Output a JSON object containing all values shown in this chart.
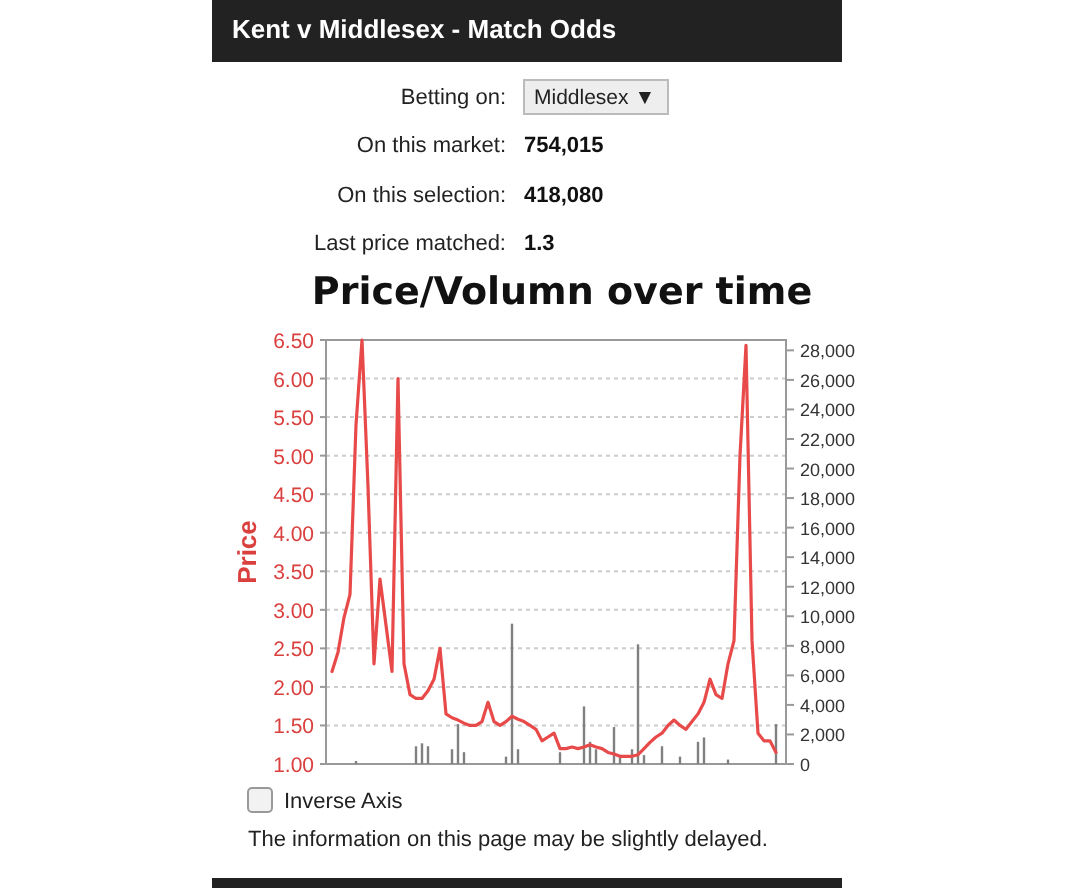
{
  "chart_data": {
    "type": "line",
    "title": "Price/Volumn over time",
    "ylabel": "Price",
    "annotations": [
      "Kent v Middlesex - Match Odds",
      "Betting on:",
      "Middlesex ▼",
      "On this market:",
      "754,015",
      "On this selection:",
      "418,080",
      "Last price matched:",
      "1.3",
      "Inverse Axis",
      "The information on this page may be slightly delayed."
    ],
    "categories": [
      null,
      null,
      null,
      null,
      null,
      null,
      null,
      null,
      null,
      null,
      null,
      null,
      null,
      null,
      null,
      null,
      null,
      null,
      null,
      null,
      null,
      null,
      null,
      null,
      null,
      null,
      null,
      null,
      null,
      null,
      null,
      null,
      null,
      null,
      null,
      null,
      null,
      null,
      null,
      null,
      null,
      null,
      null,
      null,
      null,
      null,
      null,
      null,
      null,
      null,
      null,
      null,
      null,
      null,
      null,
      null,
      null,
      null,
      null,
      null,
      null,
      null,
      null,
      null,
      null,
      null,
      null,
      null,
      null,
      null,
      null,
      null,
      null,
      null,
      null
    ],
    "series": [
      {
        "type": "bar",
        "axis": "y2",
        "color": "#808080",
        "values": [
          0,
          0,
          0,
          0,
          200,
          0,
          0,
          0,
          0,
          0,
          0,
          0,
          0,
          0,
          1200,
          1400,
          1200,
          0,
          0,
          0,
          1000,
          2700,
          800,
          0,
          0,
          0,
          0,
          0,
          0,
          500,
          9500,
          1000,
          0,
          0,
          0,
          0,
          0,
          0,
          800,
          0,
          0,
          0,
          3900,
          1500,
          1000,
          0,
          0,
          2500,
          600,
          0,
          1000,
          8100,
          600,
          0,
          0,
          1200,
          0,
          0,
          500,
          0,
          0,
          1500,
          1800,
          0,
          0,
          0,
          300,
          0,
          0,
          0,
          0,
          0,
          0,
          0,
          2700
        ]
      },
      {
        "color": "#e84a4a",
        "values": [
          2.2,
          2.45,
          2.9,
          3.2,
          5.4,
          6.5,
          4.6,
          2.3,
          3.4,
          2.8,
          2.2,
          6.0,
          2.3,
          1.9,
          1.85,
          1.85,
          1.95,
          2.1,
          2.5,
          1.65,
          1.6,
          1.57,
          1.53,
          1.5,
          1.5,
          1.55,
          1.8,
          1.55,
          1.5,
          1.55,
          1.62,
          1.58,
          1.55,
          1.5,
          1.45,
          1.3,
          1.35,
          1.4,
          1.2,
          1.2,
          1.22,
          1.2,
          1.22,
          1.25,
          1.22,
          1.2,
          1.15,
          1.13,
          1.1,
          1.1,
          1.1,
          1.12,
          1.2,
          1.28,
          1.35,
          1.4,
          1.5,
          1.57,
          1.5,
          1.45,
          1.55,
          1.65,
          1.8,
          2.1,
          1.9,
          1.85,
          2.3,
          2.6,
          5.0,
          6.43,
          2.6,
          1.4,
          1.3,
          1.3,
          1.15
        ]
      }
    ],
    "ylim": [
      1,
      6.5
    ],
    "yticks": [
      {
        "value": 1,
        "label": "1.00"
      },
      {
        "value": 1.5,
        "label": "1.50"
      },
      {
        "value": 2,
        "label": "2.00"
      },
      {
        "value": 2.5,
        "label": "2.50"
      },
      {
        "value": 3,
        "label": "3.00"
      },
      {
        "value": 3.5,
        "label": "3.50"
      },
      {
        "value": 4,
        "label": "4.00"
      },
      {
        "value": 4.5,
        "label": "4.50"
      },
      {
        "value": 5,
        "label": "5.00"
      },
      {
        "value": 5.5,
        "label": "5.50"
      },
      {
        "value": 6,
        "label": "6.00"
      },
      {
        "value": 6.5,
        "label": "6.50"
      }
    ],
    "y2lim": [
      0,
      28700
    ],
    "y2ticks": [
      0,
      {
        "value": 2000,
        "label": "2,000"
      },
      {
        "value": 4000,
        "label": "4,000"
      },
      {
        "value": 6000,
        "label": "6,000"
      },
      {
        "value": 8000,
        "label": "8,000"
      },
      {
        "value": 10000,
        "label": "10,000"
      },
      {
        "value": 12000,
        "label": "12,000"
      },
      {
        "value": 14000,
        "label": "14,000"
      },
      {
        "value": 16000,
        "label": "16,000"
      },
      {
        "value": 18000,
        "label": "18,000"
      },
      {
        "value": 20000,
        "label": "20,000"
      },
      {
        "value": 22000,
        "label": "22,000"
      },
      {
        "value": 24000,
        "label": "24,000"
      },
      {
        "value": 26000,
        "label": "26,000"
      },
      {
        "value": 28000,
        "label": "28,000"
      }
    ],
    "grid": "y"
  }
}
